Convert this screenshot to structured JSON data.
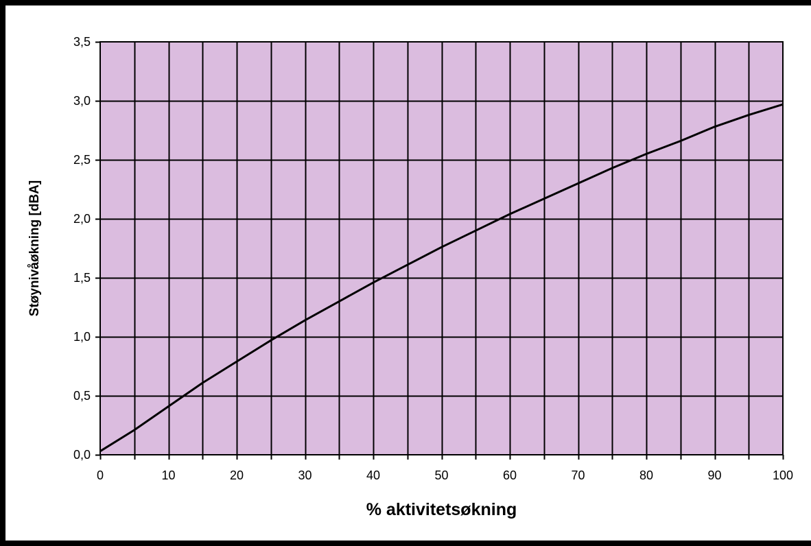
{
  "chart_data": {
    "type": "line",
    "title": "",
    "xlabel": "% aktivitetsøkning",
    "ylabel": "Støynivåøkning [dBA]",
    "xlim": [
      0,
      100
    ],
    "ylim": [
      0,
      3.5
    ],
    "x_ticks": [
      0,
      10,
      20,
      30,
      40,
      50,
      60,
      70,
      80,
      90,
      100
    ],
    "x_tick_labels": [
      "0",
      "10",
      "20",
      "30",
      "40",
      "50",
      "60",
      "70",
      "80",
      "90",
      "100"
    ],
    "y_ticks": [
      0,
      0.5,
      1.0,
      1.5,
      2.0,
      2.5,
      3.0,
      3.5
    ],
    "y_tick_labels": [
      "0,0",
      "0,5",
      "1,0",
      "1,5",
      "2,0",
      "2,5",
      "3,0",
      "3,5"
    ],
    "vertical_grid_step": 5,
    "grid": true,
    "legend": "none",
    "colors": {
      "plot_background": "#dbbcdf",
      "grid": "#000000",
      "line": "#000000",
      "outer_border": "#000000",
      "page": "#ffffff"
    },
    "series": [
      {
        "x": [
          0,
          5,
          10,
          15,
          20,
          25,
          30,
          35,
          40,
          45,
          50,
          55,
          60,
          65,
          70,
          75,
          80,
          85,
          90,
          95,
          100
        ],
        "values": [
          0.03,
          0.21,
          0.41,
          0.61,
          0.79,
          0.97,
          1.14,
          1.3,
          1.46,
          1.61,
          1.76,
          1.9,
          2.04,
          2.17,
          2.3,
          2.43,
          2.55,
          2.66,
          2.78,
          2.88,
          2.97
        ]
      }
    ]
  }
}
